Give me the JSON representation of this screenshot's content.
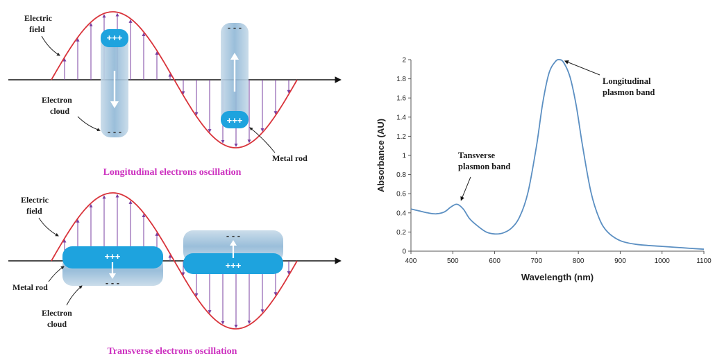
{
  "top_diagram": {
    "electric_field_label": [
      "Electric",
      "field"
    ],
    "electron_cloud_label": [
      "Electron",
      "cloud"
    ],
    "metal_rod_label": "Metal rod",
    "caption": "Longitudinal electrons oscillation",
    "plus_sign": "+++",
    "minus_sign": "- - -"
  },
  "bottom_diagram": {
    "electric_field_label": [
      "Electric",
      "field"
    ],
    "metal_rod_label": "Metal rod",
    "electron_cloud_label": [
      "Electron",
      "cloud"
    ],
    "caption": "Transverse electrons oscillation",
    "plus_sign": "+++",
    "minus_sign": "- - -"
  },
  "colors": {
    "wave": "#d9343b",
    "field_arrows": "#7a3fa0",
    "rod_blue": "#1ea3de",
    "cloud_blue": "#9fc3dc",
    "caption": "#cc2fbf",
    "curve": "#5b8fc2"
  },
  "chart_data": {
    "type": "line",
    "title": "",
    "xlabel": "Wavelength (nm)",
    "ylabel": "Absorbance (AU)",
    "xlim": [
      400,
      1100
    ],
    "ylim": [
      0,
      2
    ],
    "xticks": [
      400,
      500,
      600,
      700,
      800,
      900,
      1000,
      1100
    ],
    "yticks": [
      0,
      0.2,
      0.4,
      0.6,
      0.8,
      1,
      1.2,
      1.4,
      1.6,
      1.8,
      2
    ],
    "ytick_labels": [
      "0",
      "0.2",
      "0.4",
      "0.6",
      "0.8",
      "1",
      "1.2",
      "1.4",
      "1.6",
      "1.8",
      "2"
    ],
    "grid": false,
    "series": [
      {
        "x": [
          400,
          420,
          440,
          460,
          480,
          495,
          510,
          525,
          540,
          560,
          580,
          600,
          620,
          640,
          660,
          680,
          700,
          715,
          730,
          745,
          755,
          765,
          780,
          795,
          810,
          830,
          850,
          870,
          900,
          940,
          1000,
          1050,
          1100
        ],
        "y": [
          0.44,
          0.42,
          0.4,
          0.39,
          0.41,
          0.46,
          0.49,
          0.44,
          0.34,
          0.26,
          0.2,
          0.18,
          0.19,
          0.24,
          0.36,
          0.62,
          1.1,
          1.55,
          1.86,
          1.98,
          2.0,
          1.97,
          1.82,
          1.52,
          1.1,
          0.62,
          0.34,
          0.2,
          0.11,
          0.07,
          0.05,
          0.035,
          0.02
        ]
      }
    ],
    "annotations": [
      {
        "text": [
          "Longitudinal",
          "plasmon band"
        ],
        "x": 755,
        "y": 2.0
      },
      {
        "text": [
          "Tansverse",
          "plasmon band"
        ],
        "x": 510,
        "y": 0.49
      }
    ]
  }
}
